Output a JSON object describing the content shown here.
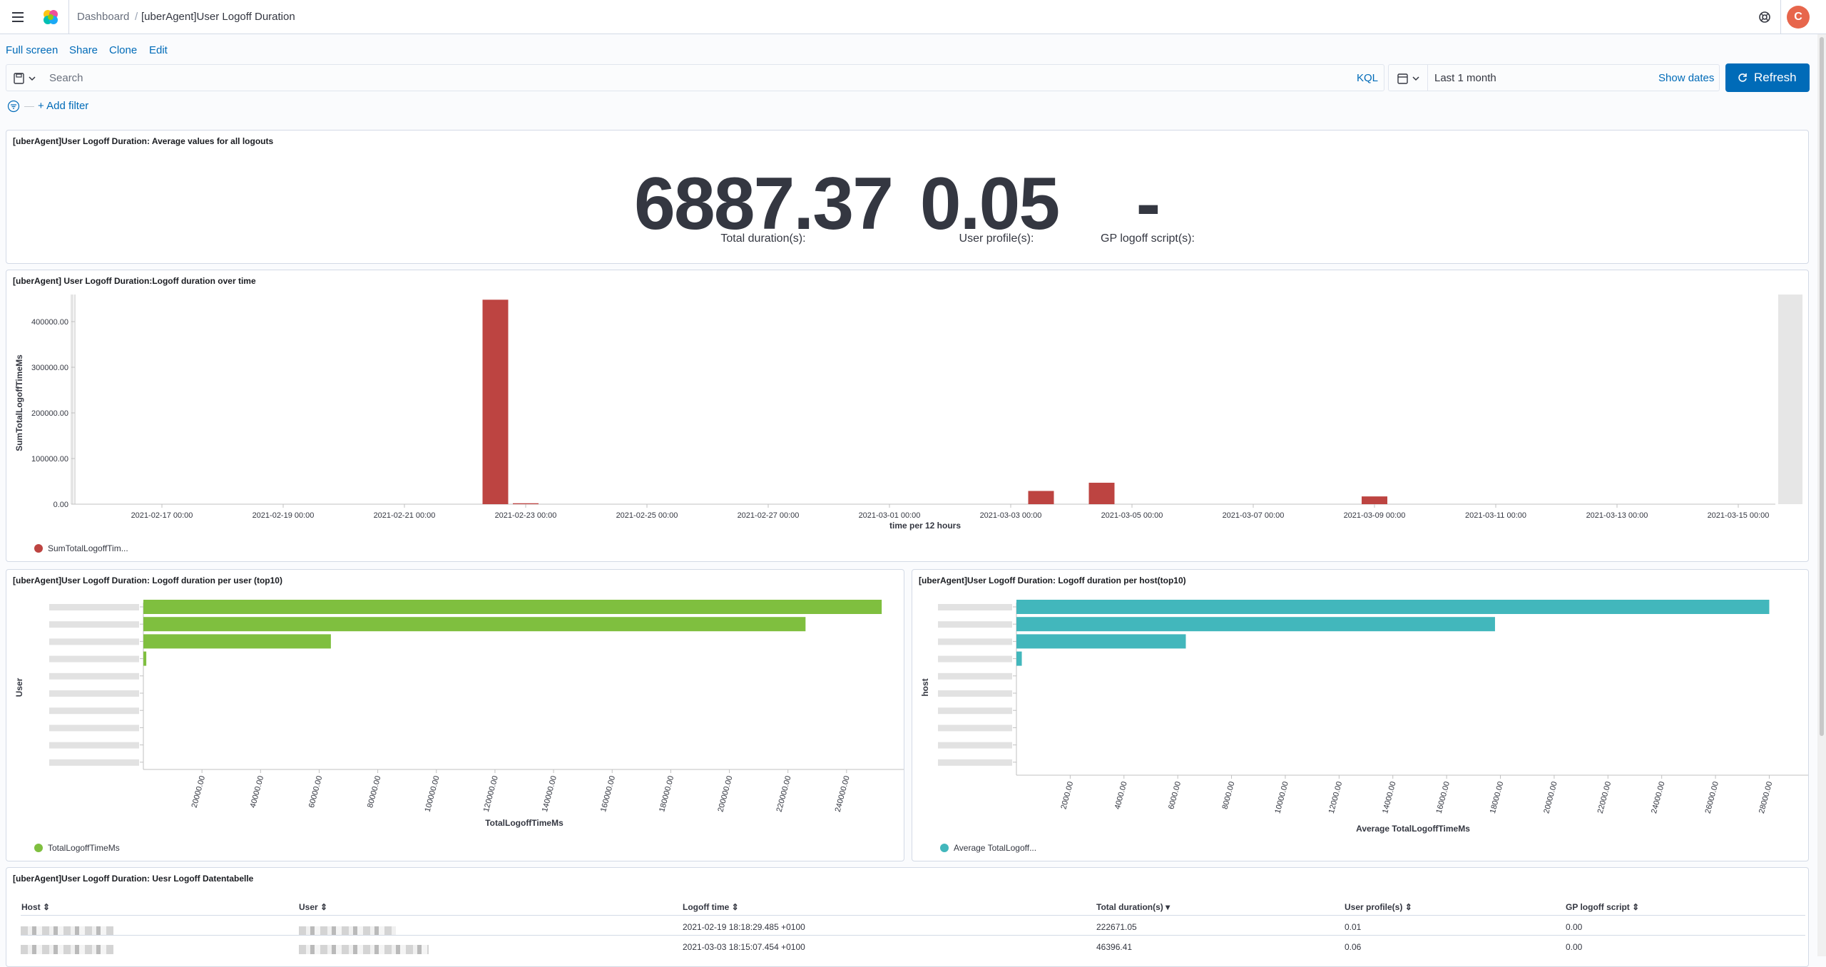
{
  "header": {
    "breadcrumbs": [
      "Dashboard",
      "[uberAgent]User Logoff Duration"
    ],
    "avatar_initial": "C"
  },
  "topnav": [
    "Full screen",
    "Share",
    "Clone",
    "Edit"
  ],
  "query": {
    "placeholder": "Search",
    "language": "KQL",
    "time_range": "Last 1 month",
    "show_dates": "Show dates",
    "refresh": "Refresh",
    "add_filter": "+ Add filter"
  },
  "metric_panel": {
    "title": "[uberAgent]User Logoff Duration: Average values for all logouts",
    "metrics": [
      {
        "value": "6887.37",
        "label": "Total duration(s):"
      },
      {
        "value": "0.05",
        "label": "User profile(s):"
      },
      {
        "value": "-",
        "label": "GP logoff script(s):"
      }
    ]
  },
  "time_panel": {
    "title": "[uberAgent] User Logoff Duration:Logoff duration over time",
    "legend": "SumTotalLogoffTim...",
    "colors": {
      "bar": "#bd4441"
    }
  },
  "user_panel": {
    "title": "[uberAgent]User Logoff Duration: Logoff duration per user (top10)",
    "legend": "TotalLogoffTimeMs",
    "colors": {
      "bar": "#7fbf3f"
    }
  },
  "host_panel": {
    "title": "[uberAgent]User Logoff Duration: Logoff duration per host(top10)",
    "legend": "Average TotalLogoff...",
    "colors": {
      "bar": "#42b7bc"
    }
  },
  "chart_data": [
    {
      "type": "bar",
      "title": "[uberAgent] User Logoff Duration:Logoff duration over time",
      "xlabel": "time per 12 hours",
      "ylabel": "SumTotalLogoffTimeMs",
      "ylim": [
        0,
        450000
      ],
      "y_ticks": [
        "0.00",
        "100000.00",
        "200000.00",
        "300000.00",
        "400000.00"
      ],
      "x_ticks": [
        "2021-02-17 00:00",
        "2021-02-19 00:00",
        "2021-02-21 00:00",
        "2021-02-23 00:00",
        "2021-02-25 00:00",
        "2021-02-27 00:00",
        "2021-03-01 00:00",
        "2021-03-03 00:00",
        "2021-03-05 00:00",
        "2021-03-07 00:00",
        "2021-03-09 00:00",
        "2021-03-11 00:00",
        "2021-03-13 00:00",
        "2021-03-15 00:00"
      ],
      "series": [
        {
          "name": "SumTotalLogoffTim...",
          "points": [
            {
              "x": "2021-02-22 12:00",
              "y": 448000
            },
            {
              "x": "2021-02-23 00:00",
              "y": 2000
            },
            {
              "x": "2021-03-03 12:00",
              "y": 29000
            },
            {
              "x": "2021-03-04 12:00",
              "y": 47000
            },
            {
              "x": "2021-03-09 00:00",
              "y": 17000
            }
          ]
        }
      ],
      "legend": "bottom-left",
      "grid": false
    },
    {
      "type": "bar",
      "orientation": "horizontal",
      "title": "[uberAgent]User Logoff Duration: Logoff duration per user (top10)",
      "xlabel": "TotalLogoffTimeMs",
      "ylabel": "User",
      "xlim": [
        0,
        260000
      ],
      "x_ticks": [
        "20000.00",
        "40000.00",
        "60000.00",
        "80000.00",
        "100000.00",
        "120000.00",
        "140000.00",
        "160000.00",
        "180000.00",
        "200000.00",
        "220000.00",
        "240000.00"
      ],
      "series": [
        {
          "name": "TotalLogoffTimeMs",
          "values": [
            252000,
            226000,
            64000,
            1000,
            0,
            0,
            0,
            0,
            0,
            0
          ]
        }
      ],
      "legend": "bottom-left",
      "grid": false
    },
    {
      "type": "bar",
      "orientation": "horizontal",
      "title": "[uberAgent]User Logoff Duration: Logoff duration per host(top10)",
      "xlabel": "Average TotalLogoffTimeMs",
      "ylabel": "host",
      "xlim": [
        0,
        29500
      ],
      "x_ticks": [
        "2000.00",
        "4000.00",
        "6000.00",
        "8000.00",
        "10000.00",
        "12000.00",
        "14000.00",
        "16000.00",
        "18000.00",
        "20000.00",
        "22000.00",
        "24000.00",
        "26000.00",
        "28000.00"
      ],
      "series": [
        {
          "name": "Average TotalLogoff...",
          "values": [
            28000,
            17800,
            6300,
            200,
            0,
            0,
            0,
            0,
            0,
            0
          ]
        }
      ],
      "legend": "bottom-left",
      "grid": false
    }
  ],
  "table_panel": {
    "title": "[uberAgent]User Logoff Duration: Uesr Logoff Datentabelle",
    "columns": [
      "Host",
      "User",
      "Logoff time",
      "Total duration(s)",
      "User profile(s)",
      "GP logoff script"
    ],
    "rows": [
      {
        "logoff_time": "2021-02-19 18:18:29.485 +0100",
        "total": "222671.05",
        "profile": "0.01",
        "gp": "0.00"
      },
      {
        "logoff_time": "2021-03-03 18:15:07.454 +0100",
        "total": "46396.41",
        "profile": "0.06",
        "gp": "0.00"
      }
    ]
  }
}
